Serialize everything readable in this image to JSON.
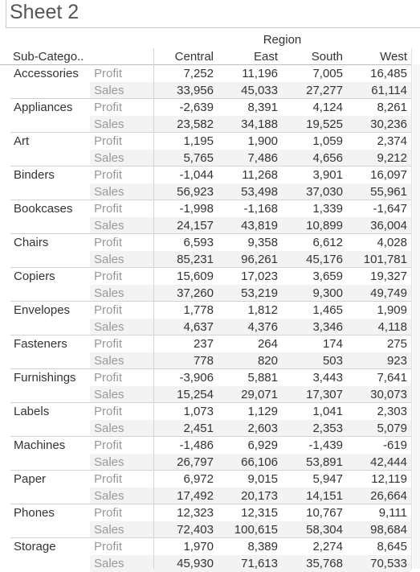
{
  "title": "Sheet 2",
  "header": {
    "column_group": "Region",
    "row_dimension": "Sub-Catego..",
    "regions": [
      "Central",
      "East",
      "South",
      "West"
    ]
  },
  "measures": [
    "Profit",
    "Sales"
  ],
  "rows": [
    {
      "subcategory": "Accessories",
      "profit": [
        "7,252",
        "11,196",
        "7,005",
        "16,485"
      ],
      "sales": [
        "33,956",
        "45,033",
        "27,277",
        "61,114"
      ]
    },
    {
      "subcategory": "Appliances",
      "profit": [
        "-2,639",
        "8,391",
        "4,124",
        "8,261"
      ],
      "sales": [
        "23,582",
        "34,188",
        "19,525",
        "30,236"
      ]
    },
    {
      "subcategory": "Art",
      "profit": [
        "1,195",
        "1,900",
        "1,059",
        "2,374"
      ],
      "sales": [
        "5,765",
        "7,486",
        "4,656",
        "9,212"
      ]
    },
    {
      "subcategory": "Binders",
      "profit": [
        "-1,044",
        "11,268",
        "3,901",
        "16,097"
      ],
      "sales": [
        "56,923",
        "53,498",
        "37,030",
        "55,961"
      ]
    },
    {
      "subcategory": "Bookcases",
      "profit": [
        "-1,998",
        "-1,168",
        "1,339",
        "-1,647"
      ],
      "sales": [
        "24,157",
        "43,819",
        "10,899",
        "36,004"
      ]
    },
    {
      "subcategory": "Chairs",
      "profit": [
        "6,593",
        "9,358",
        "6,612",
        "4,028"
      ],
      "sales": [
        "85,231",
        "96,261",
        "45,176",
        "101,781"
      ]
    },
    {
      "subcategory": "Copiers",
      "profit": [
        "15,609",
        "17,023",
        "3,659",
        "19,327"
      ],
      "sales": [
        "37,260",
        "53,219",
        "9,300",
        "49,749"
      ]
    },
    {
      "subcategory": "Envelopes",
      "profit": [
        "1,778",
        "1,812",
        "1,465",
        "1,909"
      ],
      "sales": [
        "4,637",
        "4,376",
        "3,346",
        "4,118"
      ]
    },
    {
      "subcategory": "Fasteners",
      "profit": [
        "237",
        "264",
        "174",
        "275"
      ],
      "sales": [
        "778",
        "820",
        "503",
        "923"
      ]
    },
    {
      "subcategory": "Furnishings",
      "profit": [
        "-3,906",
        "5,881",
        "3,443",
        "7,641"
      ],
      "sales": [
        "15,254",
        "29,071",
        "17,307",
        "30,073"
      ]
    },
    {
      "subcategory": "Labels",
      "profit": [
        "1,073",
        "1,129",
        "1,041",
        "2,303"
      ],
      "sales": [
        "2,451",
        "2,603",
        "2,353",
        "5,079"
      ]
    },
    {
      "subcategory": "Machines",
      "profit": [
        "-1,486",
        "6,929",
        "-1,439",
        "-619"
      ],
      "sales": [
        "26,797",
        "66,106",
        "53,891",
        "42,444"
      ]
    },
    {
      "subcategory": "Paper",
      "profit": [
        "6,972",
        "9,015",
        "5,947",
        "12,119"
      ],
      "sales": [
        "17,492",
        "20,173",
        "14,151",
        "26,664"
      ]
    },
    {
      "subcategory": "Phones",
      "profit": [
        "12,323",
        "12,315",
        "10,767",
        "9,111"
      ],
      "sales": [
        "72,403",
        "100,615",
        "58,304",
        "98,684"
      ]
    },
    {
      "subcategory": "Storage",
      "profit": [
        "1,970",
        "8,389",
        "2,274",
        "8,645"
      ],
      "sales": [
        "45,930",
        "71,613",
        "35,768",
        "70,533"
      ]
    }
  ]
}
